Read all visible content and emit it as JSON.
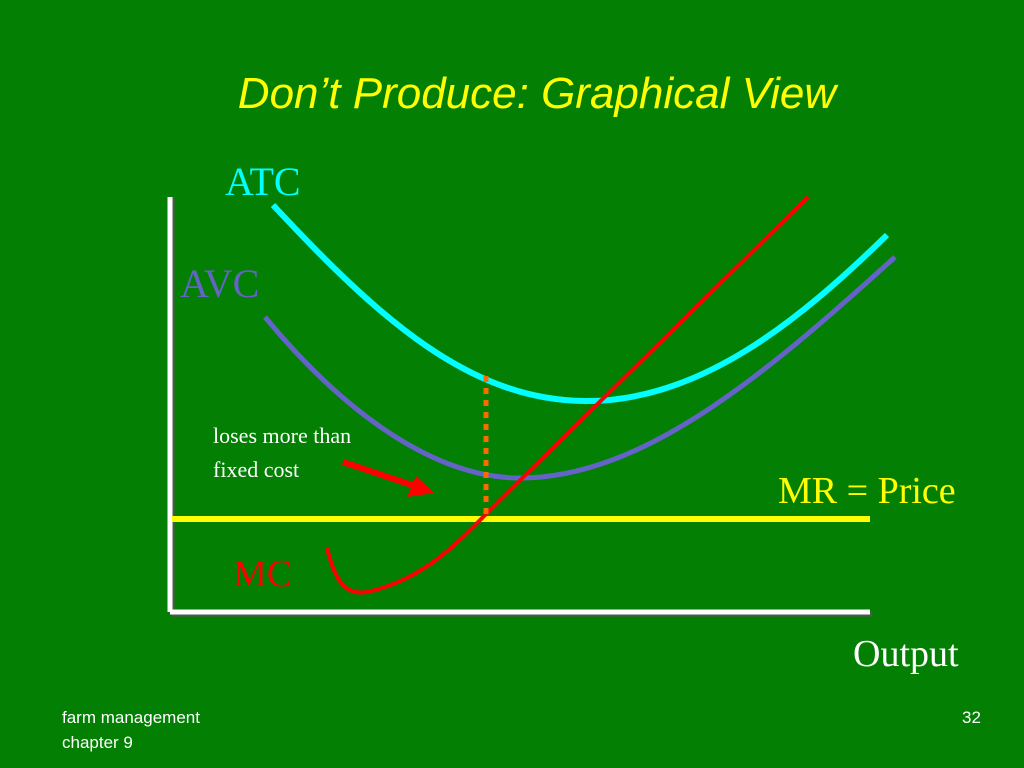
{
  "title": "Don’t Produce:  Graphical View",
  "labels": {
    "atc": "ATC",
    "avc": "AVC",
    "mc": "MC",
    "mr": "MR = Price",
    "x_axis": "Output"
  },
  "annotation": [
    "loses more than",
    "fixed cost"
  ],
  "footer": {
    "lines": [
      "farm management",
      "chapter 9"
    ],
    "page_number": "32"
  }
}
